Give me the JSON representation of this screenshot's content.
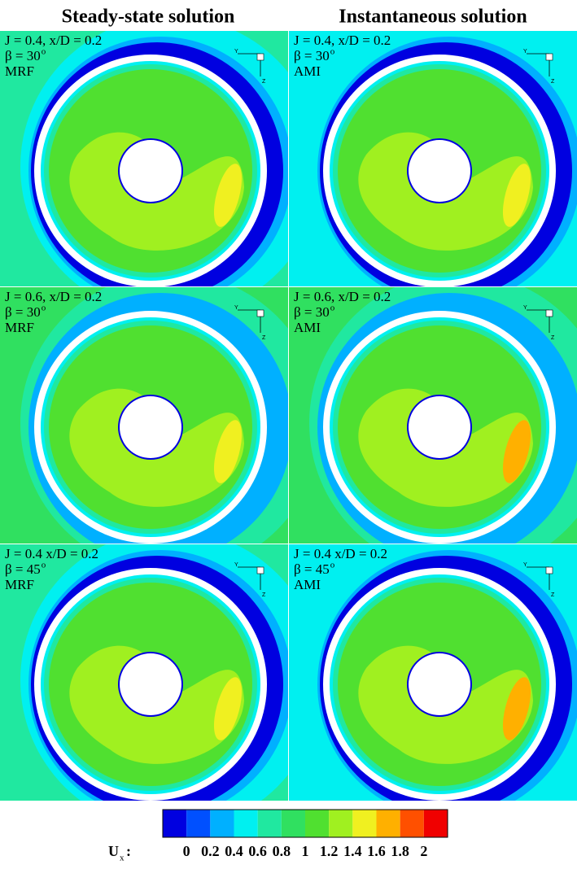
{
  "headers": [
    "Steady-state solution",
    "Instantaneous solution"
  ],
  "panels": [
    {
      "line1": "J = 0.4, x/D = 0.2",
      "beta": "β = 30",
      "beta_sup": "o",
      "method": "MRF"
    },
    {
      "line1": "J = 0.4, x/D = 0.2",
      "beta": "β = 30",
      "beta_sup": "o",
      "method": "AMI"
    },
    {
      "line1": "J = 0.6, x/D = 0.2",
      "beta": "β = 30",
      "beta_sup": "o",
      "method": "MRF"
    },
    {
      "line1": "J = 0.6, x/D = 0.2",
      "beta": "β = 30",
      "beta_sup": "o",
      "method": "AMI"
    },
    {
      "line1": "J = 0.4 x/D = 0.2",
      "beta": "β = 45",
      "beta_sup": "o",
      "method": "MRF"
    },
    {
      "line1": "J = 0.4 x/D = 0.2",
      "beta": "β = 45",
      "beta_sup": "o",
      "method": "AMI"
    }
  ],
  "axis_triad": [
    "Y",
    "Z"
  ],
  "colorbar": {
    "label": "U",
    "label_sub": "x",
    "label_suffix": ":",
    "ticks": [
      "0",
      "0.2",
      "0.4",
      "0.6",
      "0.8",
      "1",
      "1.2",
      "1.4",
      "1.6",
      "1.8",
      "2"
    ],
    "colors": [
      "#0000e0",
      "#0050ff",
      "#00b0ff",
      "#00f0f0",
      "#20e8a0",
      "#30e060",
      "#50e030",
      "#a0f020",
      "#f0f020",
      "#ffb000",
      "#ff5000",
      "#f00000"
    ]
  }
}
